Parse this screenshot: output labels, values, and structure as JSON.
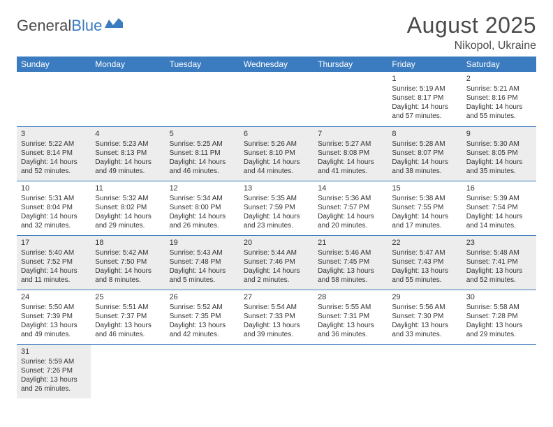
{
  "logo": {
    "text1": "General",
    "text2": "Blue"
  },
  "header": {
    "month": "August 2025",
    "location": "Nikopol, Ukraine"
  },
  "colors": {
    "header_bg": "#3b7bbf",
    "shaded": "#ededed",
    "text": "#333333"
  },
  "dayNames": [
    "Sunday",
    "Monday",
    "Tuesday",
    "Wednesday",
    "Thursday",
    "Friday",
    "Saturday"
  ],
  "weeks": [
    [
      null,
      null,
      null,
      null,
      null,
      {
        "n": "1",
        "sr": "Sunrise: 5:19 AM",
        "ss": "Sunset: 8:17 PM",
        "dl": "Daylight: 14 hours and 57 minutes."
      },
      {
        "n": "2",
        "sr": "Sunrise: 5:21 AM",
        "ss": "Sunset: 8:16 PM",
        "dl": "Daylight: 14 hours and 55 minutes."
      }
    ],
    [
      {
        "n": "3",
        "sr": "Sunrise: 5:22 AM",
        "ss": "Sunset: 8:14 PM",
        "dl": "Daylight: 14 hours and 52 minutes."
      },
      {
        "n": "4",
        "sr": "Sunrise: 5:23 AM",
        "ss": "Sunset: 8:13 PM",
        "dl": "Daylight: 14 hours and 49 minutes."
      },
      {
        "n": "5",
        "sr": "Sunrise: 5:25 AM",
        "ss": "Sunset: 8:11 PM",
        "dl": "Daylight: 14 hours and 46 minutes."
      },
      {
        "n": "6",
        "sr": "Sunrise: 5:26 AM",
        "ss": "Sunset: 8:10 PM",
        "dl": "Daylight: 14 hours and 44 minutes."
      },
      {
        "n": "7",
        "sr": "Sunrise: 5:27 AM",
        "ss": "Sunset: 8:08 PM",
        "dl": "Daylight: 14 hours and 41 minutes."
      },
      {
        "n": "8",
        "sr": "Sunrise: 5:28 AM",
        "ss": "Sunset: 8:07 PM",
        "dl": "Daylight: 14 hours and 38 minutes."
      },
      {
        "n": "9",
        "sr": "Sunrise: 5:30 AM",
        "ss": "Sunset: 8:05 PM",
        "dl": "Daylight: 14 hours and 35 minutes."
      }
    ],
    [
      {
        "n": "10",
        "sr": "Sunrise: 5:31 AM",
        "ss": "Sunset: 8:04 PM",
        "dl": "Daylight: 14 hours and 32 minutes."
      },
      {
        "n": "11",
        "sr": "Sunrise: 5:32 AM",
        "ss": "Sunset: 8:02 PM",
        "dl": "Daylight: 14 hours and 29 minutes."
      },
      {
        "n": "12",
        "sr": "Sunrise: 5:34 AM",
        "ss": "Sunset: 8:00 PM",
        "dl": "Daylight: 14 hours and 26 minutes."
      },
      {
        "n": "13",
        "sr": "Sunrise: 5:35 AM",
        "ss": "Sunset: 7:59 PM",
        "dl": "Daylight: 14 hours and 23 minutes."
      },
      {
        "n": "14",
        "sr": "Sunrise: 5:36 AM",
        "ss": "Sunset: 7:57 PM",
        "dl": "Daylight: 14 hours and 20 minutes."
      },
      {
        "n": "15",
        "sr": "Sunrise: 5:38 AM",
        "ss": "Sunset: 7:55 PM",
        "dl": "Daylight: 14 hours and 17 minutes."
      },
      {
        "n": "16",
        "sr": "Sunrise: 5:39 AM",
        "ss": "Sunset: 7:54 PM",
        "dl": "Daylight: 14 hours and 14 minutes."
      }
    ],
    [
      {
        "n": "17",
        "sr": "Sunrise: 5:40 AM",
        "ss": "Sunset: 7:52 PM",
        "dl": "Daylight: 14 hours and 11 minutes."
      },
      {
        "n": "18",
        "sr": "Sunrise: 5:42 AM",
        "ss": "Sunset: 7:50 PM",
        "dl": "Daylight: 14 hours and 8 minutes."
      },
      {
        "n": "19",
        "sr": "Sunrise: 5:43 AM",
        "ss": "Sunset: 7:48 PM",
        "dl": "Daylight: 14 hours and 5 minutes."
      },
      {
        "n": "20",
        "sr": "Sunrise: 5:44 AM",
        "ss": "Sunset: 7:46 PM",
        "dl": "Daylight: 14 hours and 2 minutes."
      },
      {
        "n": "21",
        "sr": "Sunrise: 5:46 AM",
        "ss": "Sunset: 7:45 PM",
        "dl": "Daylight: 13 hours and 58 minutes."
      },
      {
        "n": "22",
        "sr": "Sunrise: 5:47 AM",
        "ss": "Sunset: 7:43 PM",
        "dl": "Daylight: 13 hours and 55 minutes."
      },
      {
        "n": "23",
        "sr": "Sunrise: 5:48 AM",
        "ss": "Sunset: 7:41 PM",
        "dl": "Daylight: 13 hours and 52 minutes."
      }
    ],
    [
      {
        "n": "24",
        "sr": "Sunrise: 5:50 AM",
        "ss": "Sunset: 7:39 PM",
        "dl": "Daylight: 13 hours and 49 minutes."
      },
      {
        "n": "25",
        "sr": "Sunrise: 5:51 AM",
        "ss": "Sunset: 7:37 PM",
        "dl": "Daylight: 13 hours and 46 minutes."
      },
      {
        "n": "26",
        "sr": "Sunrise: 5:52 AM",
        "ss": "Sunset: 7:35 PM",
        "dl": "Daylight: 13 hours and 42 minutes."
      },
      {
        "n": "27",
        "sr": "Sunrise: 5:54 AM",
        "ss": "Sunset: 7:33 PM",
        "dl": "Daylight: 13 hours and 39 minutes."
      },
      {
        "n": "28",
        "sr": "Sunrise: 5:55 AM",
        "ss": "Sunset: 7:31 PM",
        "dl": "Daylight: 13 hours and 36 minutes."
      },
      {
        "n": "29",
        "sr": "Sunrise: 5:56 AM",
        "ss": "Sunset: 7:30 PM",
        "dl": "Daylight: 13 hours and 33 minutes."
      },
      {
        "n": "30",
        "sr": "Sunrise: 5:58 AM",
        "ss": "Sunset: 7:28 PM",
        "dl": "Daylight: 13 hours and 29 minutes."
      }
    ],
    [
      {
        "n": "31",
        "sr": "Sunrise: 5:59 AM",
        "ss": "Sunset: 7:26 PM",
        "dl": "Daylight: 13 hours and 26 minutes."
      },
      null,
      null,
      null,
      null,
      null,
      null
    ]
  ]
}
